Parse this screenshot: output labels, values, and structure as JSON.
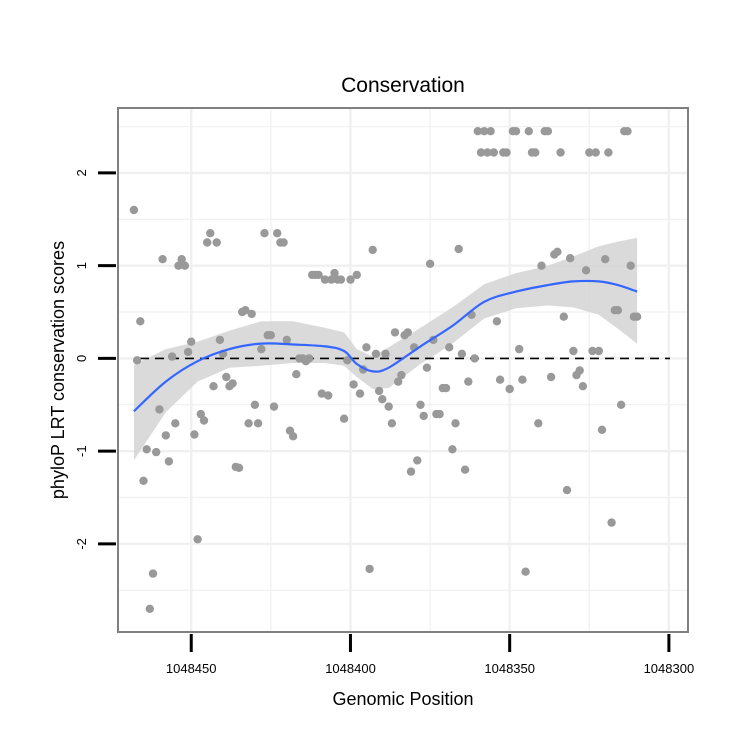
{
  "chart_data": {
    "type": "scatter",
    "title": "Conservation",
    "xlabel": "Genomic Position",
    "ylabel": "phyloP LRT conservation scores",
    "x_reversed": true,
    "xlim": [
      1048473,
      1048294
    ],
    "ylim": [
      -2.95,
      2.7
    ],
    "x_ticks": [
      1048450,
      1048400,
      1048350,
      1048300
    ],
    "x_tick_labels": [
      "1048450",
      "1048400",
      "1048350",
      "1048300"
    ],
    "y_ticks": [
      -2,
      -1,
      0,
      1,
      2
    ],
    "y_tick_labels": [
      "-2",
      "-1",
      "0",
      "1",
      "2"
    ],
    "grid": true,
    "reference_line": {
      "y": 0,
      "style": "dashed"
    },
    "colors": {
      "points": "#999999",
      "smooth": "#3366ff",
      "band": "#d4d4d4",
      "grid": "#f0f0f0",
      "frame": "#808080"
    },
    "points": [
      [
        1048468,
        1.6
      ],
      [
        1048467,
        -0.02
      ],
      [
        1048466,
        0.4
      ],
      [
        1048465,
        -1.32
      ],
      [
        1048464,
        -0.98
      ],
      [
        1048463,
        -2.7
      ],
      [
        1048462,
        -2.32
      ],
      [
        1048461,
        -1.01
      ],
      [
        1048460,
        -0.55
      ],
      [
        1048459,
        1.07
      ],
      [
        1048458,
        -0.83
      ],
      [
        1048457,
        -1.11
      ],
      [
        1048456,
        0.02
      ],
      [
        1048455,
        -0.7
      ],
      [
        1048454,
        1.0
      ],
      [
        1048453,
        1.07
      ],
      [
        1048452,
        1.0
      ],
      [
        1048451,
        0.07
      ],
      [
        1048450,
        0.18
      ],
      [
        1048449,
        -0.82
      ],
      [
        1048448,
        -1.95
      ],
      [
        1048447,
        -0.6
      ],
      [
        1048446,
        -0.67
      ],
      [
        1048445,
        1.25
      ],
      [
        1048444,
        1.35
      ],
      [
        1048443,
        -0.3
      ],
      [
        1048442,
        1.25
      ],
      [
        1048441,
        0.2
      ],
      [
        1048440,
        0.05
      ],
      [
        1048439,
        -0.2
      ],
      [
        1048438,
        -0.3
      ],
      [
        1048437,
        -0.27
      ],
      [
        1048436,
        -1.17
      ],
      [
        1048435,
        -1.18
      ],
      [
        1048434,
        0.5
      ],
      [
        1048433,
        0.52
      ],
      [
        1048432,
        -0.7
      ],
      [
        1048431,
        0.48
      ],
      [
        1048430,
        -0.5
      ],
      [
        1048429,
        -0.7
      ],
      [
        1048428,
        0.1
      ],
      [
        1048427,
        1.35
      ],
      [
        1048426,
        0.25
      ],
      [
        1048425,
        0.25
      ],
      [
        1048424,
        -0.52
      ],
      [
        1048423,
        1.35
      ],
      [
        1048422,
        1.25
      ],
      [
        1048421,
        1.25
      ],
      [
        1048420,
        0.2
      ],
      [
        1048419,
        -0.78
      ],
      [
        1048418,
        -0.84
      ],
      [
        1048417,
        -0.17
      ],
      [
        1048416,
        0.0
      ],
      [
        1048415,
        0.0
      ],
      [
        1048414,
        -0.03
      ],
      [
        1048413,
        0.0
      ],
      [
        1048412,
        0.9
      ],
      [
        1048411,
        0.9
      ],
      [
        1048410,
        0.9
      ],
      [
        1048409,
        -0.38
      ],
      [
        1048408,
        0.85
      ],
      [
        1048407,
        -0.4
      ],
      [
        1048406,
        0.85
      ],
      [
        1048405,
        0.92
      ],
      [
        1048404,
        0.85
      ],
      [
        1048403,
        0.85
      ],
      [
        1048402,
        -0.65
      ],
      [
        1048401,
        -0.02
      ],
      [
        1048400,
        0.85
      ],
      [
        1048399,
        -0.28
      ],
      [
        1048398,
        0.9
      ],
      [
        1048397,
        -0.38
      ],
      [
        1048396,
        -0.12
      ],
      [
        1048395,
        0.12
      ],
      [
        1048394,
        -2.27
      ],
      [
        1048393,
        1.17
      ],
      [
        1048392,
        0.05
      ],
      [
        1048391,
        -0.35
      ],
      [
        1048390,
        -0.44
      ],
      [
        1048389,
        0.05
      ],
      [
        1048388,
        -0.52
      ],
      [
        1048387,
        -0.7
      ],
      [
        1048386,
        0.28
      ],
      [
        1048385,
        -0.25
      ],
      [
        1048384,
        -0.18
      ],
      [
        1048383,
        0.25
      ],
      [
        1048382,
        0.28
      ],
      [
        1048381,
        -1.22
      ],
      [
        1048380,
        0.12
      ],
      [
        1048379,
        -1.1
      ],
      [
        1048378,
        -0.5
      ],
      [
        1048377,
        -0.62
      ],
      [
        1048376,
        -0.1
      ],
      [
        1048375,
        1.02
      ],
      [
        1048374,
        0.2
      ],
      [
        1048373,
        -0.6
      ],
      [
        1048372,
        -0.6
      ],
      [
        1048371,
        -0.32
      ],
      [
        1048370,
        -0.32
      ],
      [
        1048369,
        0.12
      ],
      [
        1048368,
        -0.98
      ],
      [
        1048367,
        -0.7
      ],
      [
        1048366,
        1.18
      ],
      [
        1048365,
        0.05
      ],
      [
        1048364,
        -1.2
      ],
      [
        1048363,
        -0.25
      ],
      [
        1048362,
        0.47
      ],
      [
        1048361,
        0.0
      ],
      [
        1048360,
        2.45
      ],
      [
        1048359,
        2.22
      ],
      [
        1048358,
        2.45
      ],
      [
        1048357,
        2.22
      ],
      [
        1048356,
        2.45
      ],
      [
        1048355,
        2.22
      ],
      [
        1048354,
        0.4
      ],
      [
        1048353,
        -0.23
      ],
      [
        1048352,
        2.22
      ],
      [
        1048351,
        2.22
      ],
      [
        1048350,
        -0.33
      ],
      [
        1048349,
        2.45
      ],
      [
        1048348,
        2.45
      ],
      [
        1048347,
        0.1
      ],
      [
        1048346,
        -0.23
      ],
      [
        1048345,
        -2.3
      ],
      [
        1048344,
        2.45
      ],
      [
        1048343,
        2.22
      ],
      [
        1048342,
        2.22
      ],
      [
        1048341,
        -0.7
      ],
      [
        1048340,
        1.0
      ],
      [
        1048339,
        2.45
      ],
      [
        1048338,
        2.45
      ],
      [
        1048337,
        -0.2
      ],
      [
        1048336,
        1.12
      ],
      [
        1048335,
        1.15
      ],
      [
        1048334,
        2.22
      ],
      [
        1048333,
        0.45
      ],
      [
        1048332,
        -1.42
      ],
      [
        1048331,
        1.08
      ],
      [
        1048330,
        0.08
      ],
      [
        1048329,
        -0.18
      ],
      [
        1048328,
        -0.13
      ],
      [
        1048327,
        -0.3
      ],
      [
        1048326,
        0.95
      ],
      [
        1048325,
        2.22
      ],
      [
        1048324,
        0.08
      ],
      [
        1048323,
        2.22
      ],
      [
        1048322,
        0.08
      ],
      [
        1048321,
        -0.77
      ],
      [
        1048320,
        1.07
      ],
      [
        1048319,
        2.22
      ],
      [
        1048318,
        -1.77
      ],
      [
        1048317,
        0.52
      ],
      [
        1048316,
        0.52
      ],
      [
        1048315,
        -0.5
      ],
      [
        1048314,
        2.45
      ],
      [
        1048313,
        2.45
      ],
      [
        1048312,
        1.0
      ],
      [
        1048311,
        0.45
      ],
      [
        1048310,
        0.45
      ]
    ],
    "smooth": {
      "x": [
        1048468,
        1048458,
        1048448,
        1048438,
        1048428,
        1048418,
        1048408,
        1048402,
        1048398,
        1048393,
        1048388,
        1048378,
        1048368,
        1048358,
        1048348,
        1048338,
        1048330,
        1048322,
        1048316,
        1048310
      ],
      "y": [
        -0.57,
        -0.25,
        -0.03,
        0.1,
        0.16,
        0.15,
        0.13,
        0.08,
        -0.06,
        -0.14,
        -0.1,
        0.13,
        0.35,
        0.61,
        0.72,
        0.79,
        0.83,
        0.83,
        0.79,
        0.72
      ],
      "lower": [
        -1.1,
        -0.58,
        -0.25,
        -0.1,
        -0.08,
        -0.05,
        -0.05,
        -0.08,
        -0.2,
        -0.33,
        -0.32,
        -0.06,
        0.16,
        0.43,
        0.54,
        0.57,
        0.55,
        0.47,
        0.32,
        0.16
      ],
      "upper": [
        -0.07,
        0.1,
        0.18,
        0.3,
        0.4,
        0.4,
        0.33,
        0.28,
        0.1,
        0.02,
        0.12,
        0.33,
        0.55,
        0.8,
        0.92,
        1.0,
        1.1,
        1.21,
        1.26,
        1.3
      ]
    }
  }
}
